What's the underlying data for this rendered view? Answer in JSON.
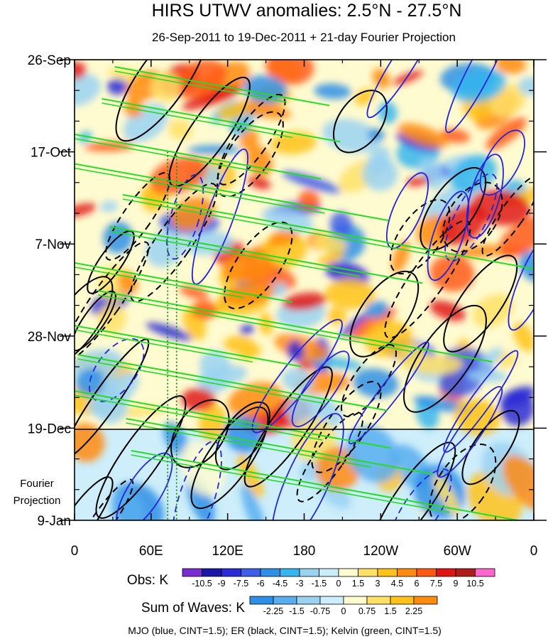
{
  "chart_data": {
    "type": "heatmap",
    "title": "HIRS UTWV anomalies: 2.5°N - 27.5°N",
    "subtitle": "26-Sep-2011 to 19-Dec-2011 + 21-day Fourier Projection",
    "x_tick_labels": [
      "0",
      "60E",
      "120E",
      "180",
      "120W",
      "60W",
      "0"
    ],
    "x_tick_degrees": [
      0,
      60,
      120,
      180,
      240,
      300,
      360
    ],
    "xlim": [
      0,
      360
    ],
    "y_tick_labels": [
      "26-Sep",
      "17-Oct",
      "7-Nov",
      "28-Nov",
      "19-Dec",
      "9-Jan"
    ],
    "y_tick_days": [
      0,
      21,
      42,
      63,
      84,
      105
    ],
    "ylim_days": [
      0,
      105
    ],
    "observation_end_day": 84,
    "projection_label_line1": "Fourier",
    "projection_label_line2": "Projection",
    "obs_colorbar": {
      "label": "Obs: K",
      "levels": [
        "-10.5",
        "-9",
        "-7.5",
        "-6",
        "-4.5",
        "-3",
        "-1.5",
        "0",
        "1.5",
        "3",
        "4.5",
        "6",
        "7.5",
        "9",
        "10.5"
      ],
      "colors": [
        "#7a2cd0",
        "#1a16a8",
        "#2a2ad6",
        "#3e5ee8",
        "#2e8fe6",
        "#35b5ee",
        "#9ad2f2",
        "#c8eef8",
        "#fffbd0",
        "#ffe066",
        "#ffc21a",
        "#ff8a10",
        "#ff5a14",
        "#e01414",
        "#b01c1c",
        "#ff66cc"
      ]
    },
    "waves_colorbar": {
      "label": "Sum of Waves: K",
      "levels": [
        "-2.25",
        "-1.5",
        "-0.75",
        "0",
        "0.75",
        "1.5",
        "2.25"
      ],
      "colors": [
        "#2e8fe6",
        "#58aef0",
        "#9ad2f2",
        "#cdeefa",
        "#fffbd0",
        "#ffe066",
        "#ffc21a",
        "#ff8a10"
      ]
    },
    "legend_note": "MJO (blue, CINT=1.5); ER (black, CINT=1.5); Kelvin (green, CINT=1.5)",
    "contour_series": [
      {
        "name": "MJO",
        "color": "#2424d8"
      },
      {
        "name": "ER",
        "color": "#000000"
      },
      {
        "name": "Kelvin",
        "color": "#22dd22"
      }
    ],
    "reference_longitudes_deg": [
      73,
      80
    ]
  }
}
